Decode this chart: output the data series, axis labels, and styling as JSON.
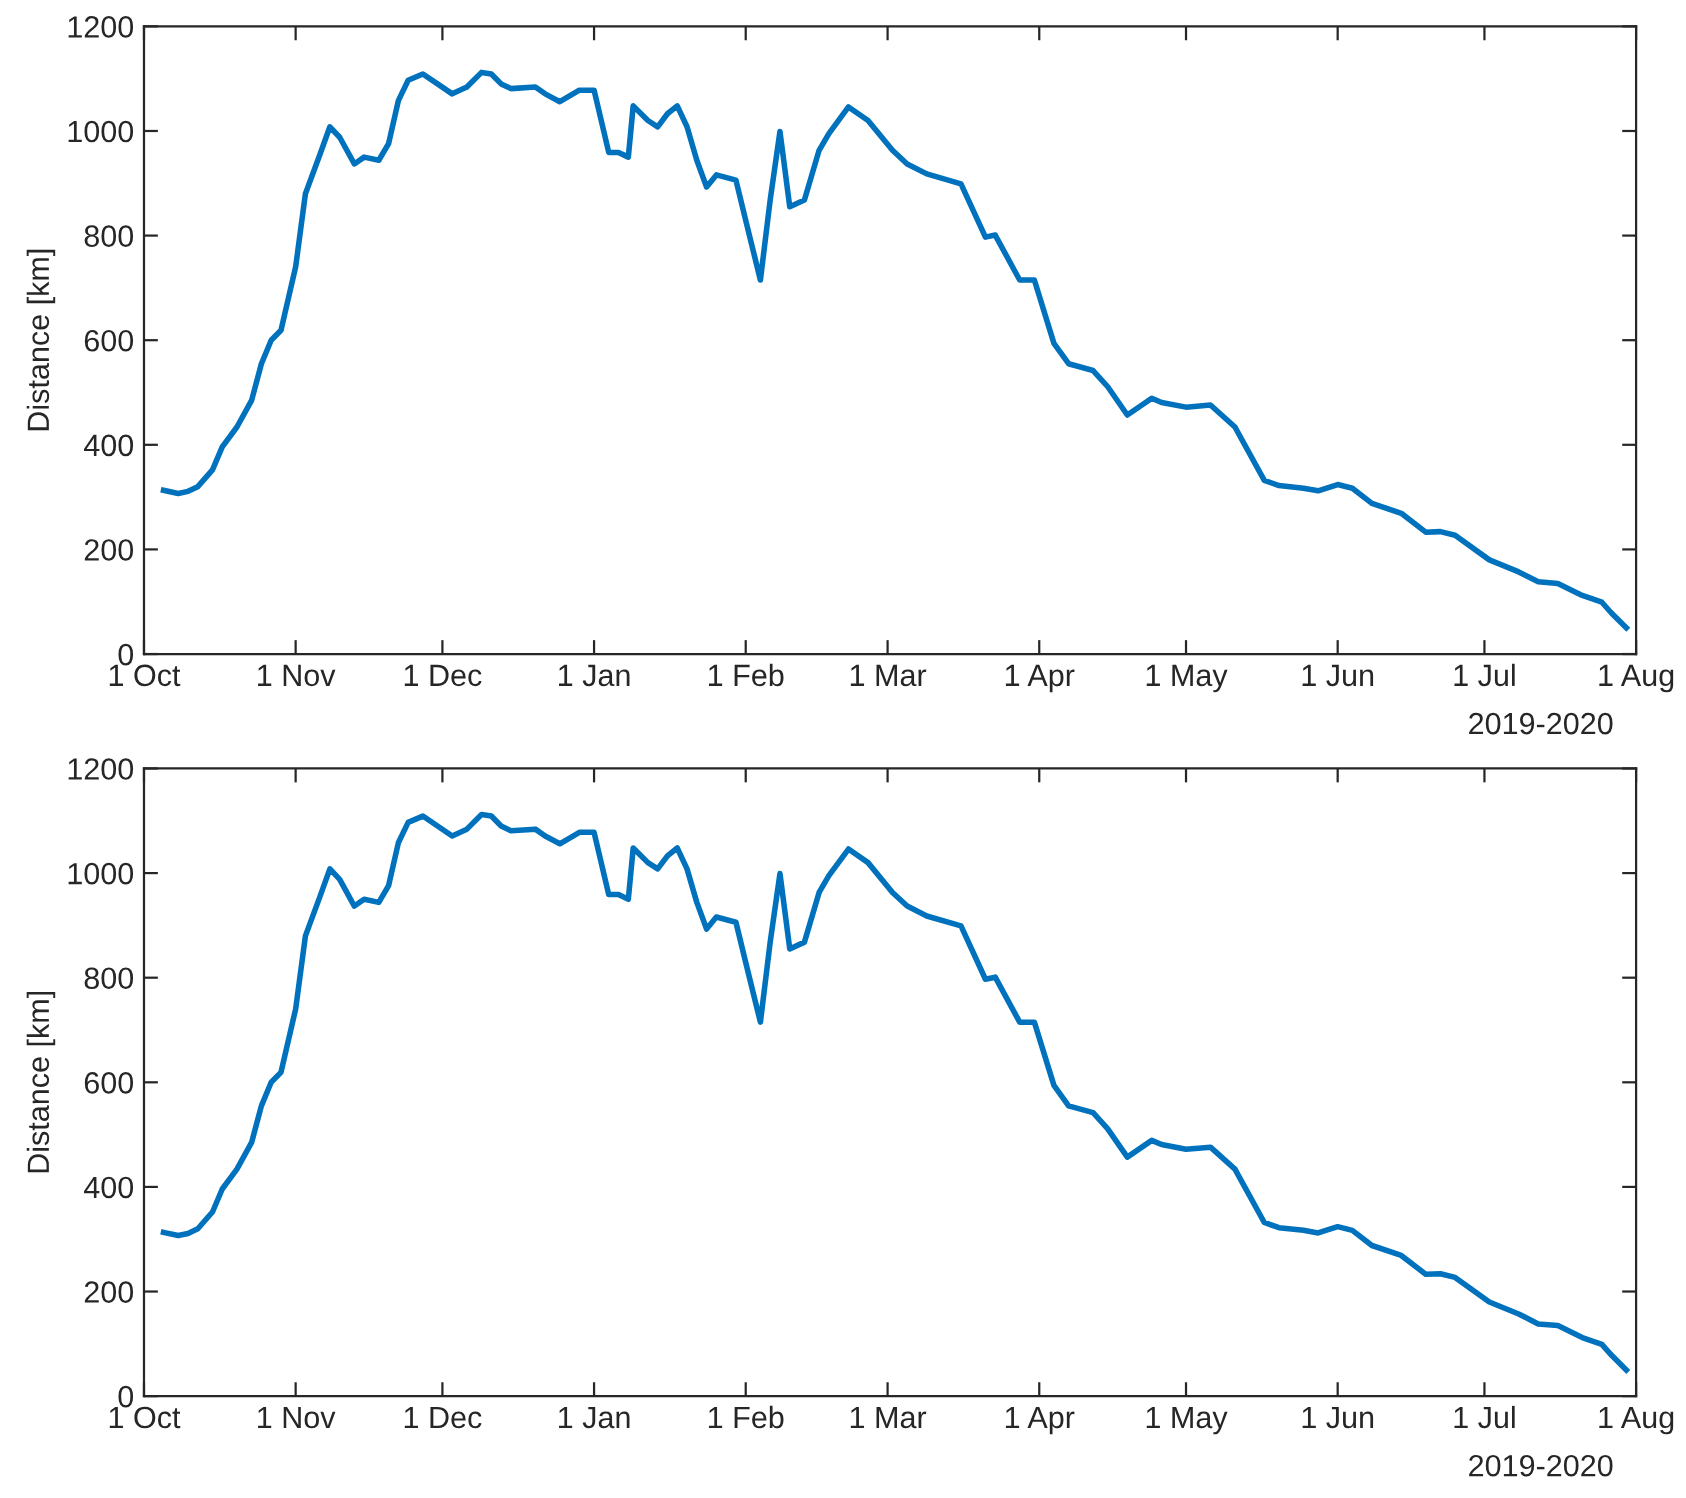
{
  "chart_data": [
    {
      "type": "line",
      "ylabel": "Distance [km]",
      "annotations": [
        "2019-2020"
      ],
      "x": [
        "2019-10-05",
        "2019-10-08",
        "2019-10-10",
        "2019-10-12",
        "2019-10-15",
        "2019-10-17",
        "2019-10-20",
        "2019-10-23",
        "2019-10-25",
        "2019-10-27",
        "2019-10-29",
        "2019-11-01",
        "2019-11-03",
        "2019-11-06",
        "2019-11-08",
        "2019-11-10",
        "2019-11-13",
        "2019-11-15",
        "2019-11-18",
        "2019-11-20",
        "2019-11-22",
        "2019-11-24",
        "2019-11-27",
        "2019-11-30",
        "2019-12-03",
        "2019-12-06",
        "2019-12-09",
        "2019-12-11",
        "2019-12-13",
        "2019-12-15",
        "2019-12-20",
        "2019-12-22",
        "2019-12-25",
        "2019-12-29",
        "2020-01-01",
        "2020-01-04",
        "2020-01-06",
        "2020-01-08",
        "2020-01-09",
        "2020-01-12",
        "2020-01-14",
        "2020-01-16",
        "2020-01-18",
        "2020-01-20",
        "2020-01-22",
        "2020-01-24",
        "2020-01-26",
        "2020-01-30",
        "2020-02-01",
        "2020-02-04",
        "2020-02-06",
        "2020-02-08",
        "2020-02-10",
        "2020-02-13",
        "2020-02-16",
        "2020-02-18",
        "2020-02-22",
        "2020-02-26",
        "2020-03-02",
        "2020-03-05",
        "2020-03-09",
        "2020-03-16",
        "2020-03-21",
        "2020-03-23",
        "2020-03-28",
        "2020-03-31",
        "2020-04-04",
        "2020-04-07",
        "2020-04-12",
        "2020-04-15",
        "2020-04-19",
        "2020-04-24",
        "2020-04-26",
        "2020-05-01",
        "2020-05-06",
        "2020-05-11",
        "2020-05-17",
        "2020-05-20",
        "2020-05-25",
        "2020-05-28",
        "2020-06-01",
        "2020-06-04",
        "2020-06-08",
        "2020-06-14",
        "2020-06-19",
        "2020-06-22",
        "2020-06-25",
        "2020-07-02",
        "2020-07-08",
        "2020-07-12",
        "2020-07-16",
        "2020-07-21",
        "2020-07-25",
        "2020-07-27",
        "2020-07-30"
      ],
      "series": [
        {
          "color": "#0072bd",
          "values": [
            313,
            307,
            311,
            320,
            352,
            396,
            434,
            485,
            555,
            600,
            619,
            740,
            880,
            956,
            1008,
            988,
            937,
            950,
            944,
            976,
            1058,
            1097,
            1109,
            1090,
            1071,
            1084,
            1112,
            1109,
            1090,
            1081,
            1084,
            1071,
            1056,
            1078,
            1078,
            959,
            959,
            950,
            1048,
            1020,
            1008,
            1033,
            1048,
            1008,
            944,
            893,
            916,
            906,
            829,
            715,
            868,
            999,
            855,
            868,
            963,
            995,
            1046,
            1020,
            963,
            937,
            918,
            899,
            797,
            801,
            715,
            715,
            594,
            555,
            542,
            511,
            457,
            489,
            481,
            472,
            476,
            434,
            332,
            322,
            317,
            312,
            324,
            317,
            288,
            269,
            233,
            234,
            227,
            180,
            157,
            138,
            135,
            112,
            99,
            78,
            50
          ]
        }
      ],
      "xlim": [
        "2019-10-01",
        "2020-08-01"
      ],
      "xticks": [
        {
          "value": "2019-10-01",
          "label": "1 Oct"
        },
        {
          "value": "2019-11-01",
          "label": "1 Nov"
        },
        {
          "value": "2019-12-01",
          "label": "1 Dec"
        },
        {
          "value": "2020-01-01",
          "label": "1 Jan"
        },
        {
          "value": "2020-02-01",
          "label": "1 Feb"
        },
        {
          "value": "2020-03-01",
          "label": "1 Mar"
        },
        {
          "value": "2020-04-01",
          "label": "1 Apr"
        },
        {
          "value": "2020-05-01",
          "label": "1 May"
        },
        {
          "value": "2020-06-01",
          "label": "1 Jun"
        },
        {
          "value": "2020-07-01",
          "label": "1 Jul"
        },
        {
          "value": "2020-08-01",
          "label": "1 Aug"
        }
      ],
      "ylim": [
        0,
        1200
      ],
      "yticks": [
        0,
        200,
        400,
        600,
        800,
        1000,
        1200
      ],
      "grid": false,
      "legend": false,
      "line_style": "solid"
    },
    {
      "type": "line",
      "ylabel": "Distance [km]",
      "annotations": [
        "2019-2020"
      ],
      "x": [
        "2019-10-05",
        "2019-10-08",
        "2019-10-10",
        "2019-10-12",
        "2019-10-15",
        "2019-10-17",
        "2019-10-20",
        "2019-10-23",
        "2019-10-25",
        "2019-10-27",
        "2019-10-29",
        "2019-11-01",
        "2019-11-03",
        "2019-11-06",
        "2019-11-08",
        "2019-11-10",
        "2019-11-13",
        "2019-11-15",
        "2019-11-18",
        "2019-11-20",
        "2019-11-22",
        "2019-11-24",
        "2019-11-27",
        "2019-11-30",
        "2019-12-03",
        "2019-12-06",
        "2019-12-09",
        "2019-12-11",
        "2019-12-13",
        "2019-12-15",
        "2019-12-20",
        "2019-12-22",
        "2019-12-25",
        "2019-12-29",
        "2020-01-01",
        "2020-01-04",
        "2020-01-06",
        "2020-01-08",
        "2020-01-09",
        "2020-01-12",
        "2020-01-14",
        "2020-01-16",
        "2020-01-18",
        "2020-01-20",
        "2020-01-22",
        "2020-01-24",
        "2020-01-26",
        "2020-01-30",
        "2020-02-01",
        "2020-02-04",
        "2020-02-06",
        "2020-02-08",
        "2020-02-10",
        "2020-02-13",
        "2020-02-16",
        "2020-02-18",
        "2020-02-22",
        "2020-02-26",
        "2020-03-02",
        "2020-03-05",
        "2020-03-09",
        "2020-03-16",
        "2020-03-21",
        "2020-03-23",
        "2020-03-28",
        "2020-03-31",
        "2020-04-04",
        "2020-04-07",
        "2020-04-12",
        "2020-04-15",
        "2020-04-19",
        "2020-04-24",
        "2020-04-26",
        "2020-05-01",
        "2020-05-06",
        "2020-05-11",
        "2020-05-17",
        "2020-05-20",
        "2020-05-25",
        "2020-05-28",
        "2020-06-01",
        "2020-06-04",
        "2020-06-08",
        "2020-06-14",
        "2020-06-19",
        "2020-06-22",
        "2020-06-25",
        "2020-07-02",
        "2020-07-08",
        "2020-07-12",
        "2020-07-16",
        "2020-07-21",
        "2020-07-25",
        "2020-07-27",
        "2020-07-30"
      ],
      "series": [
        {
          "color": "#0072bd",
          "values": [
            313,
            307,
            311,
            320,
            352,
            396,
            434,
            485,
            555,
            600,
            619,
            740,
            880,
            956,
            1008,
            988,
            937,
            950,
            944,
            976,
            1058,
            1097,
            1109,
            1090,
            1071,
            1084,
            1112,
            1109,
            1090,
            1081,
            1084,
            1071,
            1056,
            1078,
            1078,
            959,
            959,
            950,
            1048,
            1020,
            1008,
            1033,
            1048,
            1008,
            944,
            893,
            916,
            906,
            829,
            715,
            868,
            999,
            855,
            868,
            963,
            995,
            1046,
            1020,
            963,
            937,
            918,
            899,
            797,
            801,
            715,
            715,
            594,
            555,
            542,
            511,
            457,
            489,
            481,
            472,
            476,
            434,
            332,
            322,
            317,
            312,
            324,
            317,
            288,
            269,
            233,
            234,
            227,
            180,
            157,
            138,
            135,
            112,
            99,
            78,
            50
          ]
        }
      ],
      "xlim": [
        "2019-10-01",
        "2020-08-01"
      ],
      "xticks": [
        {
          "value": "2019-10-01",
          "label": "1 Oct"
        },
        {
          "value": "2019-11-01",
          "label": "1 Nov"
        },
        {
          "value": "2019-12-01",
          "label": "1 Dec"
        },
        {
          "value": "2020-01-01",
          "label": "1 Jan"
        },
        {
          "value": "2020-02-01",
          "label": "1 Feb"
        },
        {
          "value": "2020-03-01",
          "label": "1 Mar"
        },
        {
          "value": "2020-04-01",
          "label": "1 Apr"
        },
        {
          "value": "2020-05-01",
          "label": "1 May"
        },
        {
          "value": "2020-06-01",
          "label": "1 Jun"
        },
        {
          "value": "2020-07-01",
          "label": "1 Jul"
        },
        {
          "value": "2020-08-01",
          "label": "1 Aug"
        }
      ],
      "ylim": [
        0,
        1200
      ],
      "yticks": [
        0,
        200,
        400,
        600,
        800,
        1000,
        1200
      ],
      "grid": false,
      "legend": false,
      "line_style": "solid"
    }
  ]
}
